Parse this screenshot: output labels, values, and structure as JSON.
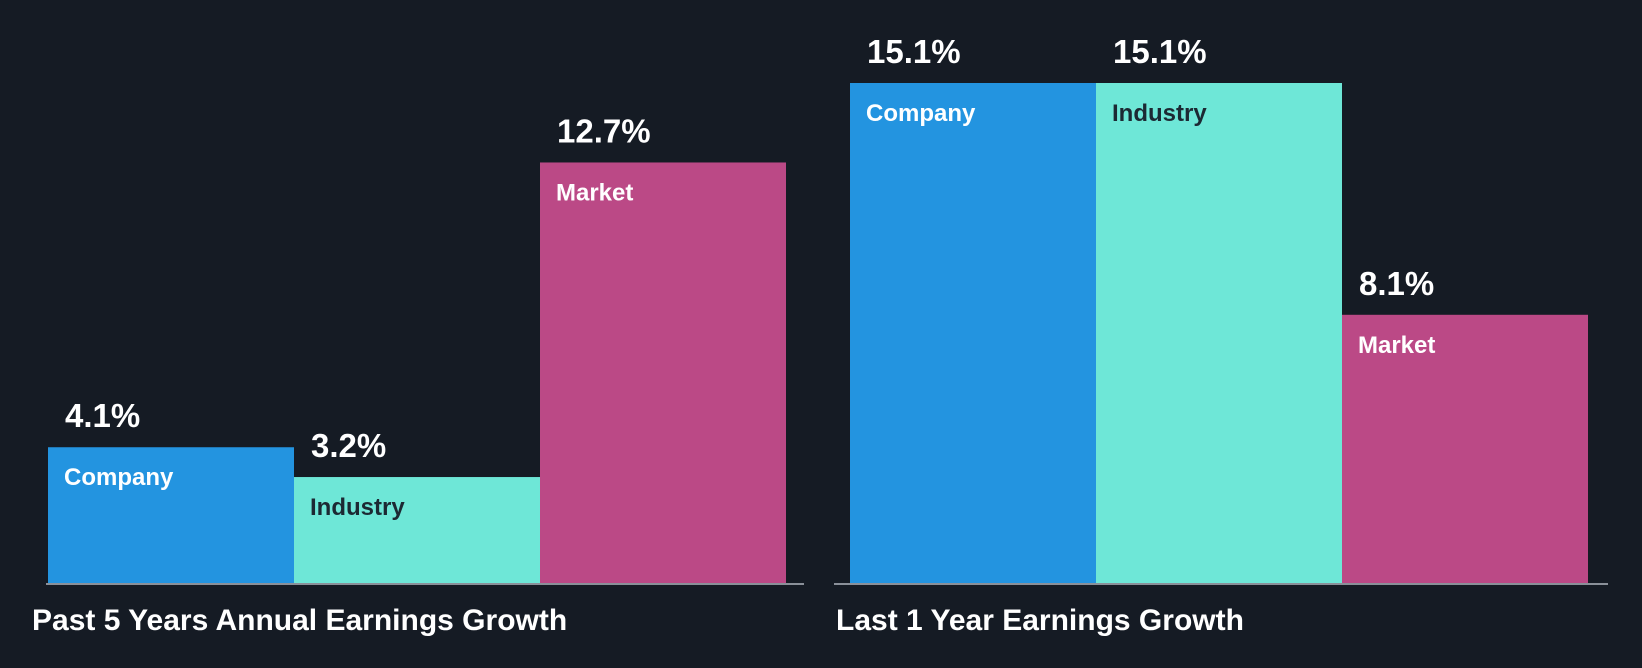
{
  "colors": {
    "background": "#151b24",
    "company": "#2394e0",
    "industry": "#6ee7d7",
    "market": "#bb4986",
    "baseline": "#8a9099",
    "value_label": "#ffffff",
    "bar_label_light": "#ffffff",
    "bar_label_dark": "#1c2933"
  },
  "chart_data": [
    {
      "type": "bar",
      "title": "Past 5 Years Annual Earnings Growth",
      "categories": [
        "Company",
        "Industry",
        "Market"
      ],
      "values": [
        4.1,
        3.2,
        12.7
      ],
      "value_labels": [
        "4.1%",
        "3.2%",
        "12.7%"
      ],
      "unit": "%",
      "ylim": [
        0,
        15.1
      ],
      "xlabel": "",
      "ylabel": "",
      "grid": false,
      "legend": "none"
    },
    {
      "type": "bar",
      "title": "Last 1 Year Earnings Growth",
      "categories": [
        "Company",
        "Industry",
        "Market"
      ],
      "values": [
        15.1,
        15.1,
        8.1
      ],
      "value_labels": [
        "15.1%",
        "15.1%",
        "8.1%"
      ],
      "unit": "%",
      "ylim": [
        0,
        15.1
      ],
      "xlabel": "",
      "ylabel": "",
      "grid": false,
      "legend": "none"
    }
  ]
}
